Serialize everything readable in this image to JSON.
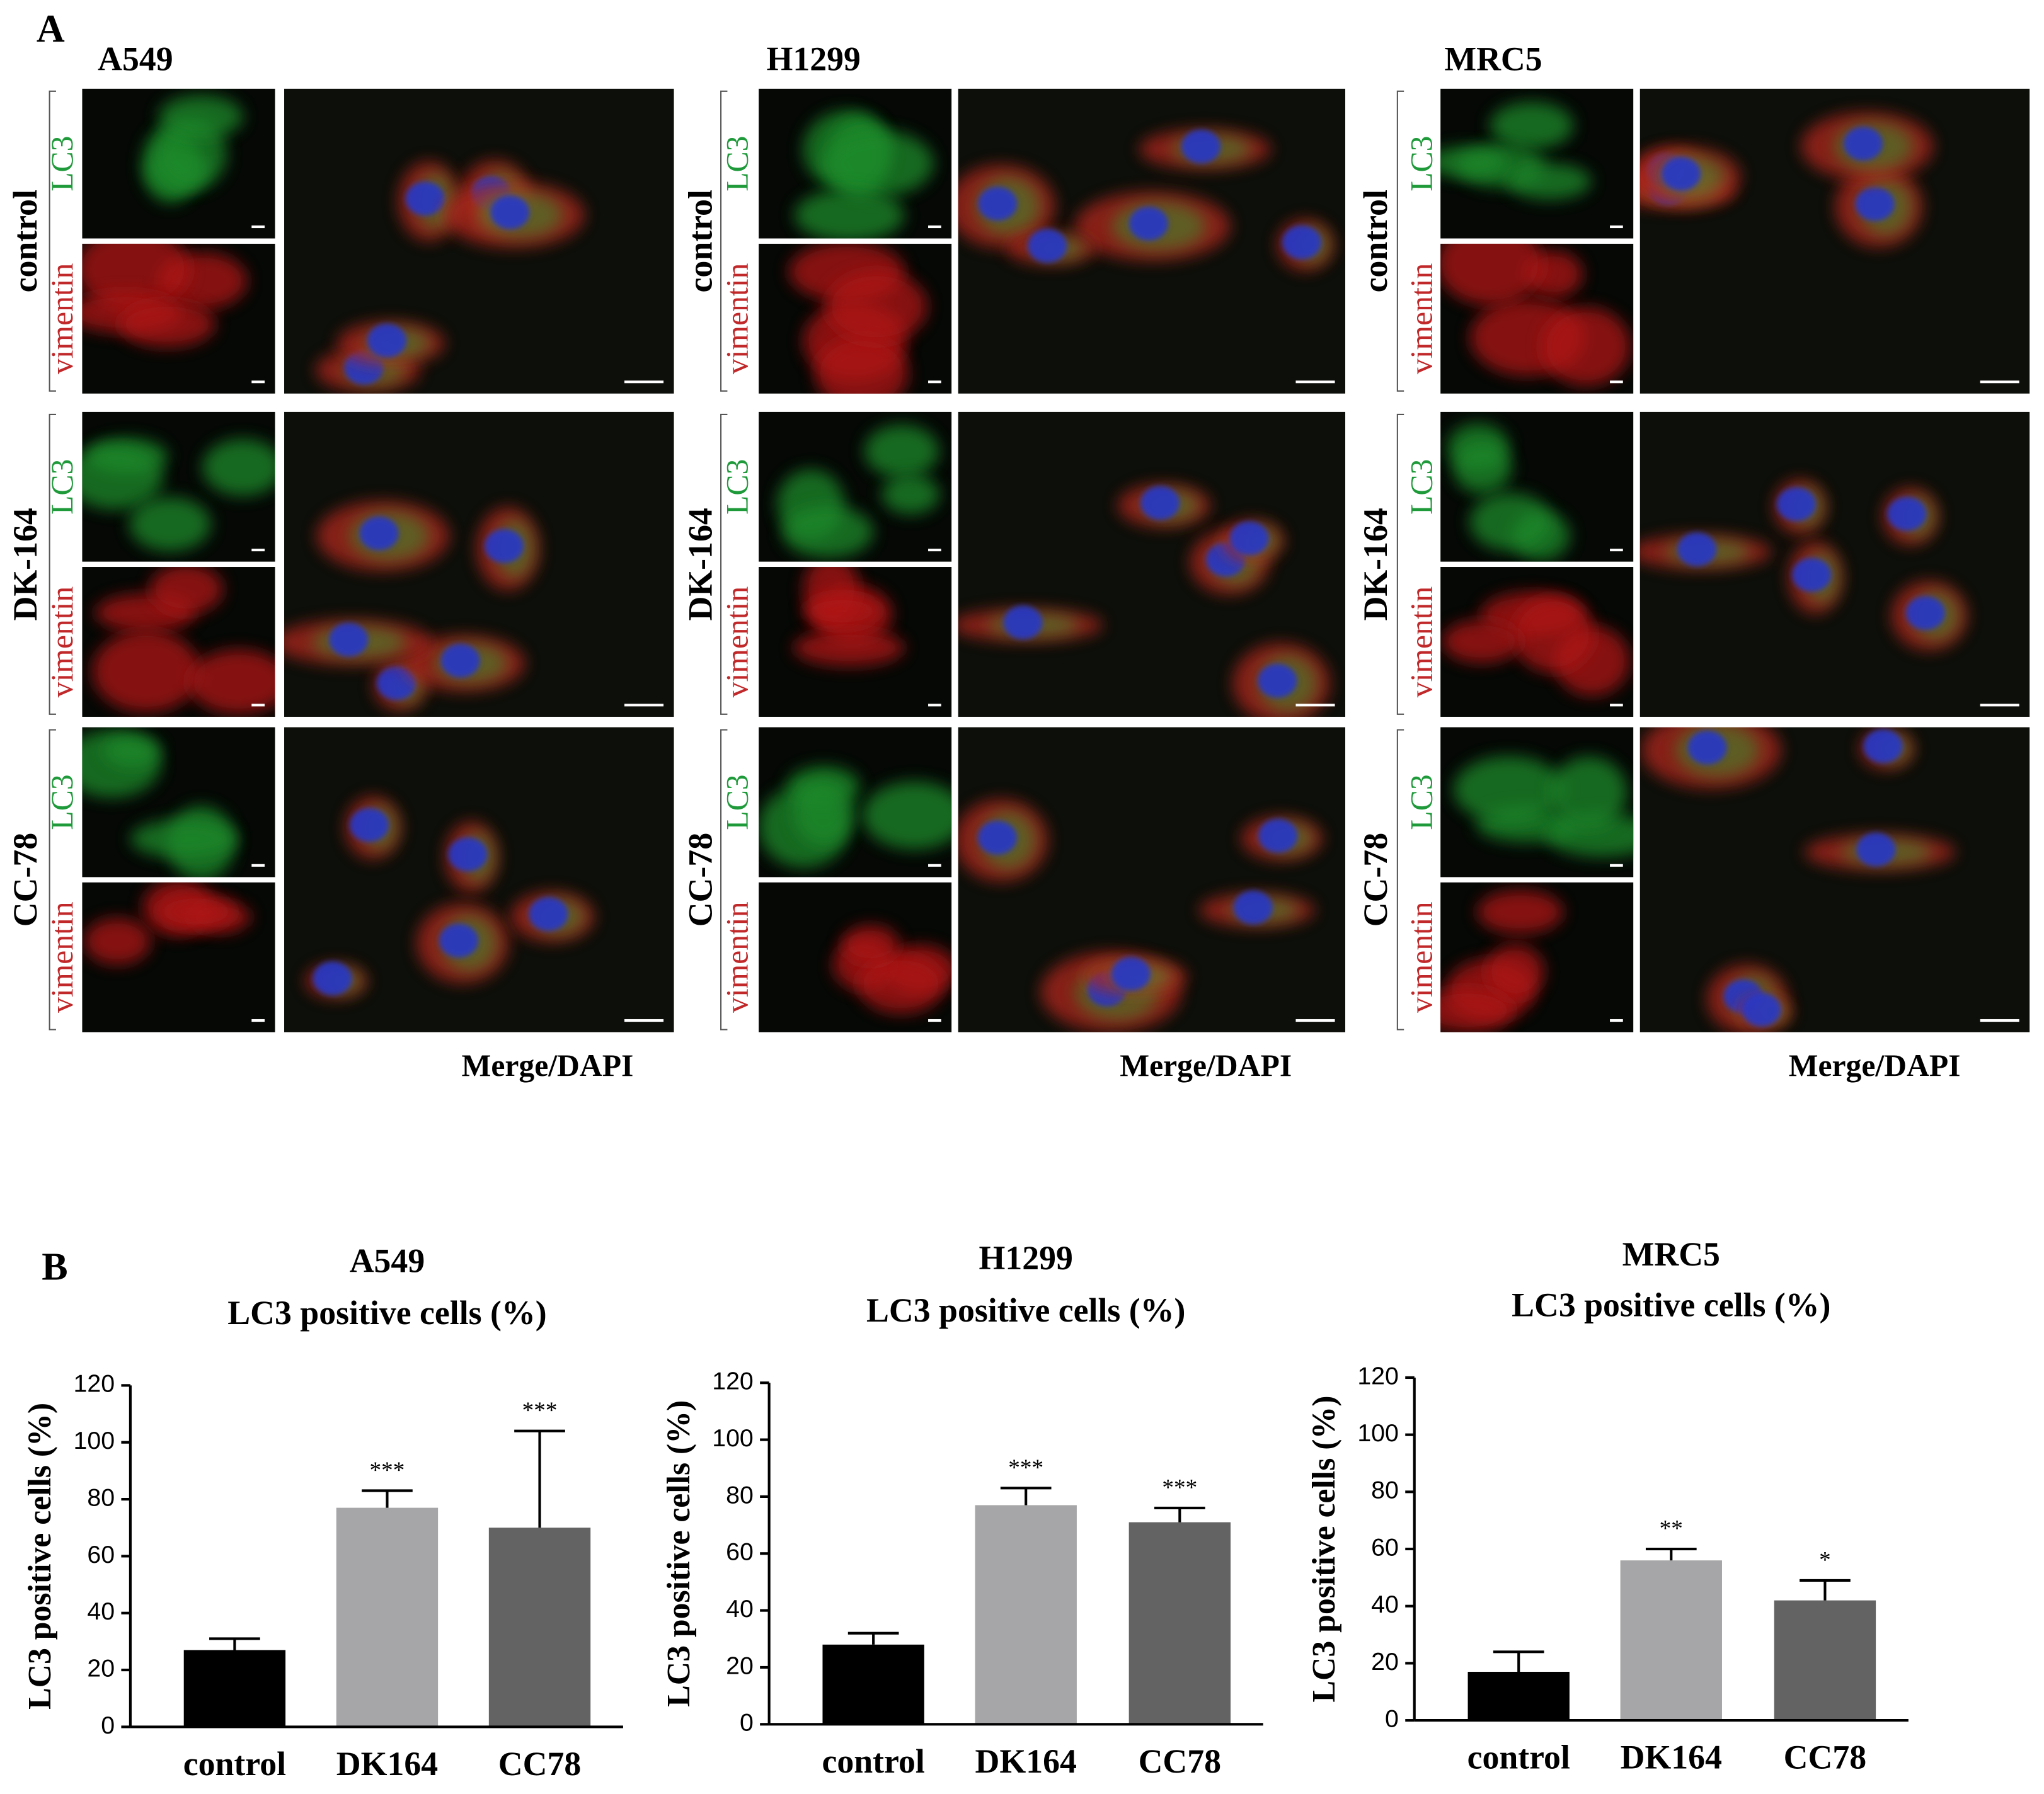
{
  "panel_a": {
    "label": "A",
    "columns": [
      {
        "title": "A549",
        "merge_label": "Merge/DAPI"
      },
      {
        "title": "H1299",
        "merge_label": "Merge/DAPI"
      },
      {
        "title": "MRC5",
        "merge_label": "Merge/DAPI"
      }
    ],
    "rows": [
      "control",
      "DK-164",
      "CC-78"
    ],
    "channels": [
      "LC3",
      "vimentin"
    ]
  },
  "panel_b_label": "B",
  "chart_data": [
    {
      "type": "bar",
      "title": "A549",
      "subtitle": "LC3 positive cells (%)",
      "ylabel": "LC3 positive cells (%)",
      "categories": [
        "control",
        "DK164",
        "CC78"
      ],
      "values": [
        27,
        77,
        70
      ],
      "errors": [
        4,
        6,
        34
      ],
      "significance": [
        null,
        "***",
        "***"
      ],
      "colors": [
        "#000000",
        "#a6a6a8",
        "#636363"
      ],
      "ylim": [
        0,
        120
      ],
      "yticks": [
        0,
        20,
        40,
        60,
        80,
        100,
        120
      ]
    },
    {
      "type": "bar",
      "title": "H1299",
      "subtitle": "LC3 positive cells (%)",
      "ylabel": "LC3 positive cells (%)",
      "categories": [
        "control",
        "DK164",
        "CC78"
      ],
      "values": [
        28,
        77,
        71
      ],
      "errors": [
        4,
        6,
        5
      ],
      "significance": [
        null,
        "***",
        "***"
      ],
      "colors": [
        "#000000",
        "#a6a6a8",
        "#636363"
      ],
      "ylim": [
        0,
        120
      ],
      "yticks": [
        0,
        20,
        40,
        60,
        80,
        100,
        120
      ]
    },
    {
      "type": "bar",
      "title": "MRC5",
      "subtitle": "LC3 positive cells (%)",
      "ylabel": "LC3 positive cells (%)",
      "categories": [
        "control",
        "DK164",
        "CC78"
      ],
      "values": [
        17,
        56,
        42
      ],
      "errors": [
        7,
        4,
        7
      ],
      "significance": [
        null,
        "**",
        "*"
      ],
      "colors": [
        "#000000",
        "#a6a6a8",
        "#636363"
      ],
      "ylim": [
        0,
        120
      ],
      "yticks": [
        0,
        20,
        40,
        60,
        80,
        100,
        120
      ]
    }
  ]
}
